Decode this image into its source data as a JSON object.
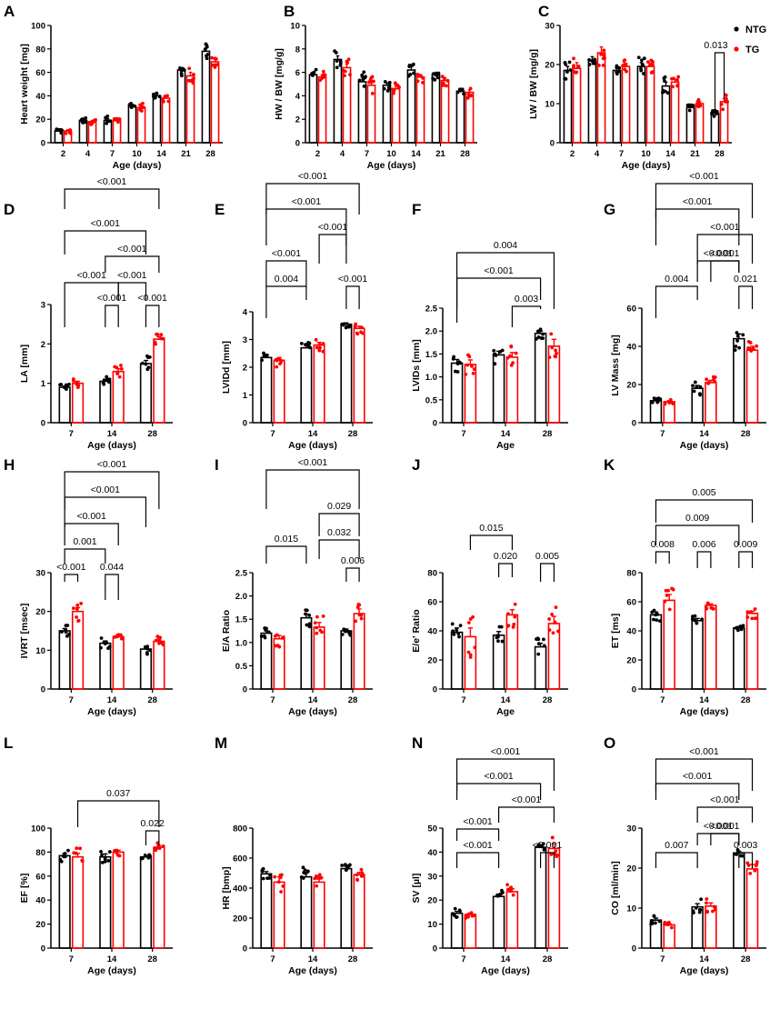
{
  "figure": {
    "legend": [
      {
        "label": "NTG",
        "color": "#000000"
      },
      {
        "label": "TG",
        "color": "#ff0000"
      }
    ]
  },
  "chart_data": [
    {
      "id": "A",
      "type": "bar",
      "ylabel": "Heart weight [mg]",
      "xlabel": "Age (days)",
      "categories": [
        "2",
        "4",
        "7",
        "10",
        "14",
        "21",
        "28"
      ],
      "ylim": [
        0,
        100
      ],
      "yticks": [
        0,
        20,
        40,
        60,
        80,
        100
      ],
      "series": [
        {
          "name": "NTG",
          "values": [
            10,
            19,
            19,
            31,
            40,
            62,
            78
          ],
          "sem": [
            1,
            1,
            1.5,
            1.5,
            1.5,
            2,
            2.5
          ]
        },
        {
          "name": "TG",
          "values": [
            10,
            18,
            19,
            30,
            38,
            57,
            69
          ],
          "sem": [
            1,
            1,
            1.5,
            1.5,
            1.5,
            3,
            2.5
          ]
        }
      ],
      "significance": []
    },
    {
      "id": "B",
      "type": "bar",
      "ylabel": "HW / BW [mg/g]",
      "xlabel": "Age (days)",
      "categories": [
        "2",
        "4",
        "7",
        "10",
        "14",
        "21",
        "28"
      ],
      "ylim": [
        0,
        10
      ],
      "yticks": [
        0,
        2,
        4,
        6,
        8,
        10
      ],
      "series": [
        {
          "name": "NTG",
          "values": [
            5.8,
            7.1,
            5.2,
            4.9,
            6.2,
            5.8,
            4.4
          ],
          "sem": [
            0.2,
            0.3,
            0.4,
            0.2,
            0.3,
            0.2,
            0.1
          ]
        },
        {
          "name": "TG",
          "values": [
            5.6,
            6.4,
            4.9,
            4.6,
            5.6,
            5.3,
            4.3
          ],
          "sem": [
            0.2,
            0.3,
            0.3,
            0.2,
            0.2,
            0.2,
            0.2
          ]
        }
      ],
      "significance": []
    },
    {
      "id": "C",
      "type": "bar",
      "ylabel": "LW / BW [mg/g]",
      "xlabel": "Age (days)",
      "categories": [
        "2",
        "4",
        "7",
        "10",
        "14",
        "21",
        "28"
      ],
      "ylim": [
        0,
        30
      ],
      "yticks": [
        0,
        10,
        20,
        30
      ],
      "series": [
        {
          "name": "NTG",
          "values": [
            18.5,
            21,
            18.5,
            19.5,
            14.5,
            9,
            7.5
          ],
          "sem": [
            1,
            1,
            0.5,
            1,
            1,
            0.5,
            0.3
          ]
        },
        {
          "name": "TG",
          "values": [
            19,
            23,
            19.5,
            19.5,
            15.5,
            10,
            10.5
          ],
          "sem": [
            1.5,
            1.5,
            0.8,
            0.8,
            0.7,
            0.5,
            0.8
          ]
        }
      ],
      "significance": [
        {
          "label": "0.013",
          "from": [
            6,
            0
          ],
          "to": [
            6,
            1
          ],
          "level": 1
        }
      ],
      "show_legend": true
    },
    {
      "id": "D",
      "type": "bar",
      "ylabel": "LA [mm]",
      "xlabel": "Age (days)",
      "categories": [
        "7",
        "14",
        "28"
      ],
      "ylim": [
        0,
        3
      ],
      "yticks": [
        0,
        1,
        2,
        3
      ],
      "series": [
        {
          "name": "NTG",
          "values": [
            0.9,
            1.05,
            1.5
          ],
          "sem": [
            0.03,
            0.05,
            0.08
          ]
        },
        {
          "name": "TG",
          "values": [
            1.0,
            1.3,
            2.12
          ],
          "sem": [
            0.05,
            0.07,
            0.06
          ]
        }
      ],
      "significance": [
        {
          "label": "<0.001",
          "from": [
            0,
            0
          ],
          "to": [
            0,
            1
          ],
          "level": 1,
          "note": "pos=0"
        },
        {
          "label": "<0.001",
          "from": [
            1,
            1
          ],
          "to": [
            1,
            1
          ],
          "level": 0
        },
        {
          "label": "<0.001",
          "from": [
            1,
            1
          ],
          "to": [
            2,
            1
          ],
          "level": 0
        }
      ]
    },
    {
      "id": "E",
      "type": "bar",
      "ylabel": "LVIDd [mm]",
      "xlabel": "Age (days)",
      "categories": [
        "7",
        "14",
        "28"
      ],
      "ylim": [
        0,
        4
      ],
      "yticks": [
        0,
        1,
        2,
        3,
        4
      ],
      "series": [
        {
          "name": "NTG",
          "values": [
            2.35,
            2.7,
            3.55
          ],
          "sem": [
            0.07,
            0.08,
            0.05
          ]
        },
        {
          "name": "TG",
          "values": [
            2.25,
            2.8,
            3.4
          ],
          "sem": [
            0.1,
            0.1,
            0.08
          ]
        }
      ],
      "significance": []
    },
    {
      "id": "F",
      "type": "bar",
      "ylabel": "LVIDs [mm]",
      "xlabel": "Age",
      "categories": [
        "7",
        "14",
        "28"
      ],
      "ylim": [
        0,
        2.5
      ],
      "yticks": [
        0,
        0.5,
        1.0,
        1.5,
        2.0,
        2.5
      ],
      "series": [
        {
          "name": "NTG",
          "values": [
            1.3,
            1.48,
            1.95
          ],
          "sem": [
            0.08,
            0.08,
            0.05
          ]
        },
        {
          "name": "TG",
          "values": [
            1.27,
            1.43,
            1.67
          ],
          "sem": [
            0.1,
            0.1,
            0.15
          ]
        }
      ],
      "significance": []
    },
    {
      "id": "G",
      "type": "bar",
      "ylabel": "LV Mass [mg]",
      "xlabel": "Age (days)",
      "categories": [
        "7",
        "14",
        "28"
      ],
      "ylim": [
        0,
        60
      ],
      "yticks": [
        0,
        20,
        40,
        60
      ],
      "series": [
        {
          "name": "NTG",
          "values": [
            11.5,
            18,
            44
          ],
          "sem": [
            0.6,
            1.5,
            2.5
          ]
        },
        {
          "name": "TG",
          "values": [
            11,
            21,
            38
          ],
          "sem": [
            0.5,
            1.2,
            2
          ]
        }
      ],
      "significance": []
    },
    {
      "id": "H",
      "type": "bar",
      "ylabel": "IVRT [msec]",
      "xlabel": "Age (days)",
      "categories": [
        "7",
        "14",
        "28"
      ],
      "ylim": [
        0,
        30
      ],
      "yticks": [
        0,
        10,
        20,
        30
      ],
      "series": [
        {
          "name": "NTG",
          "values": [
            15,
            11.8,
            10.3
          ],
          "sem": [
            0.6,
            0.6,
            0.6
          ]
        },
        {
          "name": "TG",
          "values": [
            20,
            13.5,
            12.3
          ],
          "sem": [
            1,
            0.6,
            0.6
          ]
        }
      ],
      "significance": []
    },
    {
      "id": "I",
      "type": "bar",
      "ylabel": "E/A Ratio",
      "xlabel": "Age (days)",
      "categories": [
        "7",
        "14",
        "28"
      ],
      "ylim": [
        0,
        2.5
      ],
      "yticks": [
        0,
        0.5,
        1.0,
        1.5,
        2.0,
        2.5
      ],
      "series": [
        {
          "name": "NTG",
          "values": [
            1.2,
            1.53,
            1.25
          ],
          "sem": [
            0.05,
            0.08,
            0.04
          ]
        },
        {
          "name": "TG",
          "values": [
            1.08,
            1.33,
            1.62
          ],
          "sem": [
            0.07,
            0.1,
            0.1
          ]
        }
      ],
      "significance": []
    },
    {
      "id": "J",
      "type": "bar",
      "ylabel": "E/e' Ratio",
      "xlabel": "Age",
      "categories": [
        "7",
        "14",
        "28"
      ],
      "ylim": [
        0,
        80
      ],
      "yticks": [
        0,
        20,
        40,
        60,
        80
      ],
      "series": [
        {
          "name": "NTG",
          "values": [
            39,
            37,
            29
          ],
          "sem": [
            3,
            2.5,
            2.5
          ]
        },
        {
          "name": "TG",
          "values": [
            36,
            51,
            45
          ],
          "sem": [
            6,
            3.5,
            5
          ]
        }
      ],
      "significance": []
    },
    {
      "id": "K",
      "type": "bar",
      "ylabel": "ET [ms]",
      "xlabel": "Age (days)",
      "categories": [
        "7",
        "14",
        "28"
      ],
      "ylim": [
        0,
        80
      ],
      "yticks": [
        0,
        20,
        40,
        60,
        80
      ],
      "series": [
        {
          "name": "NTG",
          "values": [
            51,
            47,
            42
          ],
          "sem": [
            2,
            1.5,
            1
          ]
        },
        {
          "name": "TG",
          "values": [
            61,
            57.5,
            52
          ],
          "sem": [
            4,
            1,
            1.5
          ]
        }
      ],
      "significance": []
    },
    {
      "id": "L",
      "type": "bar",
      "ylabel": "EF [%]",
      "xlabel": "Age (days)",
      "categories": [
        "7",
        "14",
        "28"
      ],
      "ylim": [
        0,
        100
      ],
      "yticks": [
        0,
        20,
        40,
        60,
        80,
        100
      ],
      "series": [
        {
          "name": "NTG",
          "values": [
            77,
            76,
            76
          ],
          "sem": [
            2,
            2.5,
            0.8
          ]
        },
        {
          "name": "TG",
          "values": [
            76,
            80,
            84
          ],
          "sem": [
            3,
            1.5,
            1.5
          ]
        }
      ],
      "significance": []
    },
    {
      "id": "M",
      "type": "bar",
      "ylabel": "HR [bmp]",
      "xlabel": "Age (days)",
      "categories": [
        "7",
        "14",
        "28"
      ],
      "ylim": [
        0,
        800
      ],
      "yticks": [
        0,
        200,
        400,
        600,
        800
      ],
      "series": [
        {
          "name": "NTG",
          "values": [
            495,
            475,
            530
          ],
          "sem": [
            15,
            25,
            15
          ]
        },
        {
          "name": "TG",
          "values": [
            440,
            440,
            490
          ],
          "sem": [
            35,
            20,
            15
          ]
        }
      ],
      "significance": []
    },
    {
      "id": "N",
      "type": "bar",
      "ylabel": "SV [µl]",
      "xlabel": "Age (days)",
      "categories": [
        "7",
        "14",
        "28"
      ],
      "ylim": [
        0,
        50
      ],
      "yticks": [
        0,
        10,
        20,
        30,
        40,
        50
      ],
      "series": [
        {
          "name": "NTG",
          "values": [
            14.5,
            21.5,
            42
          ],
          "sem": [
            0.8,
            1,
            1
          ]
        },
        {
          "name": "TG",
          "values": [
            14,
            23.5,
            41.5
          ],
          "sem": [
            0.6,
            1.2,
            2
          ]
        }
      ],
      "significance": []
    },
    {
      "id": "O",
      "type": "bar",
      "ylabel": "CO [ml/min]",
      "xlabel": "Age (days)",
      "categories": [
        "7",
        "14",
        "28"
      ],
      "ylim": [
        0,
        30
      ],
      "yticks": [
        0,
        10,
        20,
        30
      ],
      "series": [
        {
          "name": "NTG",
          "values": [
            7,
            10.3,
            23.8
          ],
          "sem": [
            0.5,
            0.8,
            0.4
          ]
        },
        {
          "name": "TG",
          "values": [
            5.8,
            10.5,
            19.8
          ],
          "sem": [
            0.3,
            0.8,
            1.1
          ]
        }
      ],
      "significance": []
    }
  ],
  "significance_labels": {
    "D": [
      "<0.001",
      "<0.001",
      "<0.001",
      "<0.001",
      "<0.001",
      "<0.001",
      "<0.001"
    ],
    "E": [
      "<0.001",
      "<0.001",
      "<0.001",
      "<0.001",
      "0.004",
      "<0.001"
    ],
    "F": [
      "0.004",
      "<0.001",
      "0.003"
    ],
    "G": [
      "<0.001",
      "<0.001",
      "<0.001",
      "<0.001",
      "<0.001",
      "0.004",
      "0.021"
    ],
    "H": [
      "<0.001",
      "<0.001",
      "<0.001",
      "0.001",
      "<0.001",
      "0.044"
    ],
    "I": [
      "<0.001",
      "0.029",
      "0.032",
      "0.015",
      "0.006"
    ],
    "J": [
      "0.015",
      "0.020",
      "0.005"
    ],
    "K": [
      "0.005",
      "0.009",
      "0.008",
      "0.006",
      "0.009"
    ],
    "L": [
      "0.037",
      "0.022"
    ],
    "N": [
      "<0.001",
      "<0.001",
      "<0.001",
      "<0.001",
      "<0.001",
      "<0.001"
    ],
    "O": [
      "<0.001",
      "<0.001",
      "<0.001",
      "<0.001",
      "<0.001",
      "0.007",
      "0.003"
    ]
  }
}
